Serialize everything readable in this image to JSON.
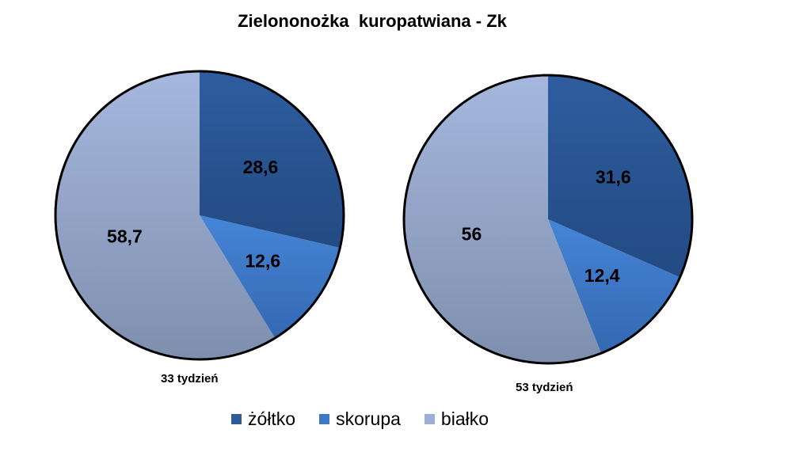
{
  "chart_data": {
    "type": "pie",
    "title": "Zielononożka  kuropatwiana - Zk",
    "categories": [
      "żółtko",
      "skorupa",
      "białko"
    ],
    "colors": [
      "#2f5a97",
      "#3d78c8",
      "#9cb0d6"
    ],
    "legend_position": "bottom",
    "pies": [
      {
        "caption": "33 tydzień",
        "values": [
          28.6,
          12.6,
          58.7
        ],
        "labels": [
          "28,6",
          "12,6",
          "58,7"
        ]
      },
      {
        "caption": "53 tydzień",
        "values": [
          31.6,
          12.4,
          56
        ],
        "labels": [
          "31,6",
          "12,4",
          "56"
        ]
      }
    ]
  }
}
